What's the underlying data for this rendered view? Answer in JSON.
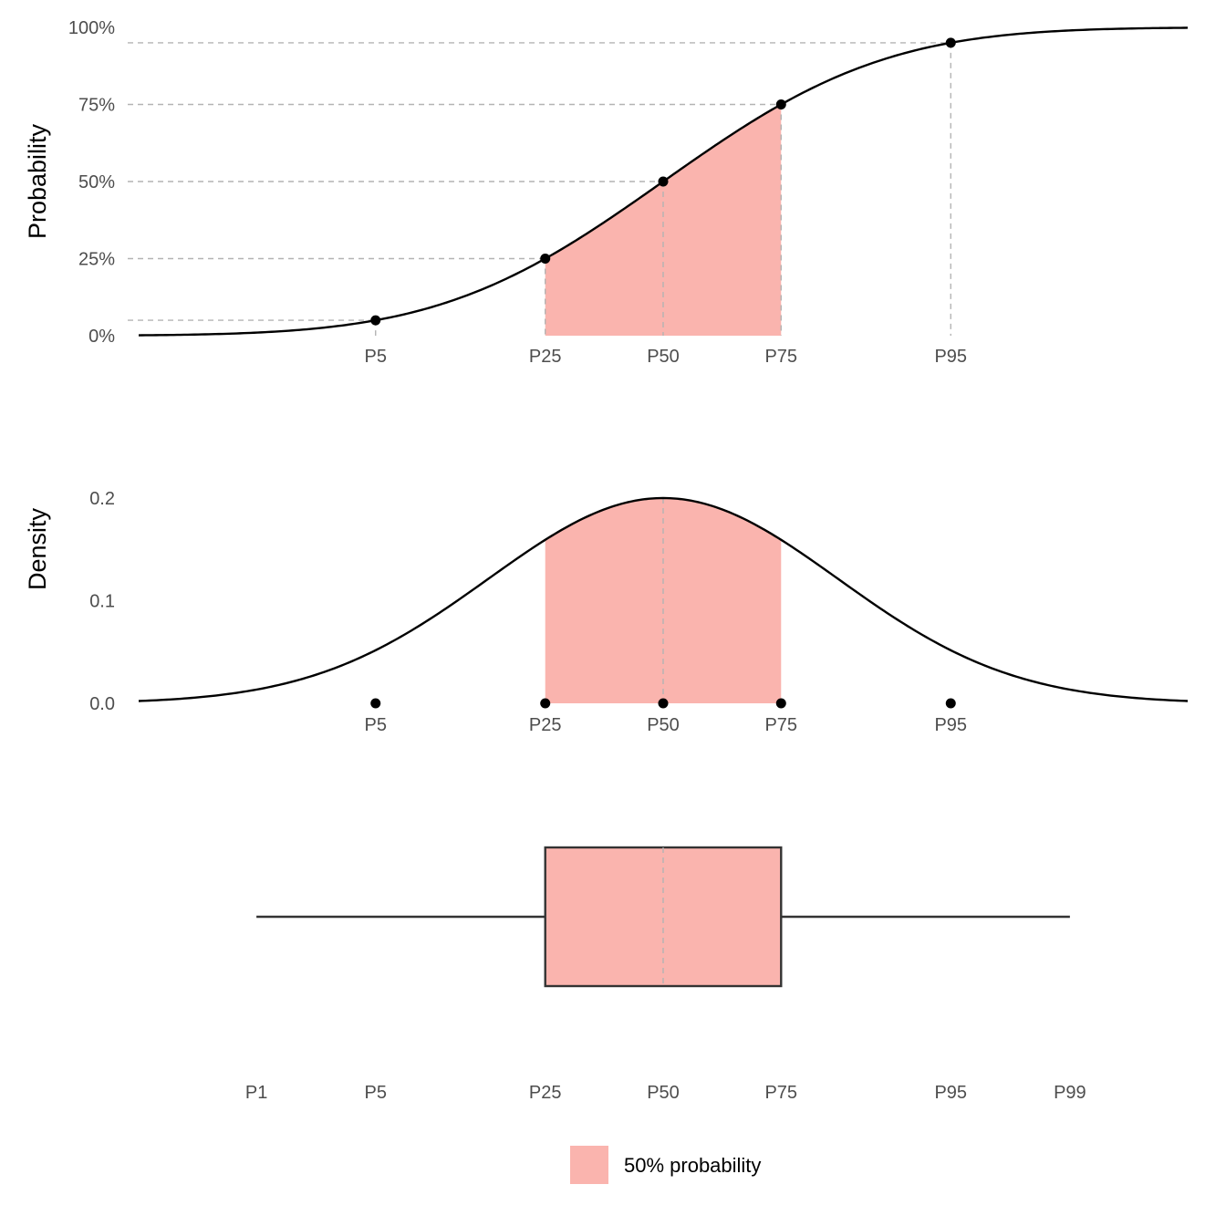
{
  "legend": {
    "label": "50% probability",
    "color": "#fab4ae"
  },
  "chart_data": [
    {
      "type": "line",
      "panel": "cdf",
      "ylabel": "Probability",
      "y_ticks": [
        "0%",
        "25%",
        "50%",
        "75%",
        "100%"
      ],
      "ylim": [
        0,
        1
      ],
      "x_tick_labels": [
        "P5",
        "P25",
        "P50",
        "P75",
        "P95"
      ],
      "points": [
        {
          "label": "P5",
          "prob": 0.05
        },
        {
          "label": "P25",
          "prob": 0.25
        },
        {
          "label": "P50",
          "prob": 0.5
        },
        {
          "label": "P75",
          "prob": 0.75
        },
        {
          "label": "P95",
          "prob": 0.95
        }
      ],
      "shaded_range": [
        "P25",
        "P75"
      ],
      "grid": false
    },
    {
      "type": "area",
      "panel": "density",
      "ylabel": "Density",
      "y_ticks": [
        "0.0",
        "0.1",
        "0.2"
      ],
      "ylim": [
        0,
        0.2
      ],
      "x_tick_labels": [
        "P5",
        "P25",
        "P50",
        "P75",
        "P95"
      ],
      "peak_density": 0.2,
      "shaded_range": [
        "P25",
        "P75"
      ],
      "grid": false
    },
    {
      "type": "boxplot",
      "panel": "box",
      "x_tick_labels": [
        "P1",
        "P5",
        "P25",
        "P50",
        "P75",
        "P95",
        "P99"
      ],
      "whiskers": [
        "P1",
        "P99"
      ],
      "box": [
        "P25",
        "P75"
      ],
      "median": "P50"
    }
  ]
}
